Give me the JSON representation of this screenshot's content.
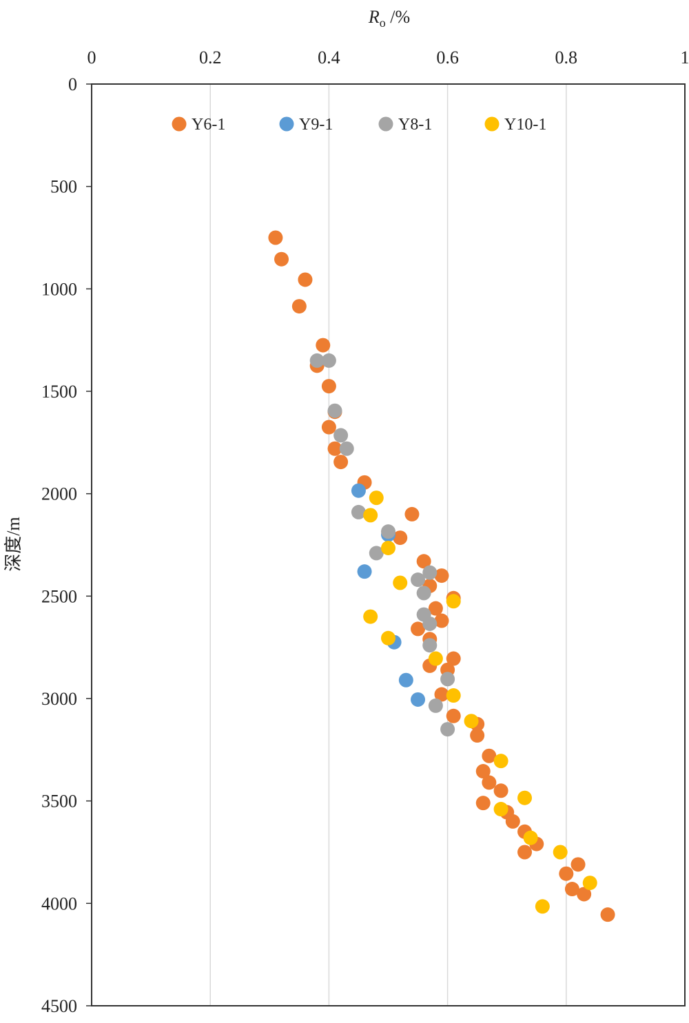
{
  "chart_data": {
    "type": "scatter",
    "xlabel_main": "R",
    "xlabel_sub": "o",
    "xlabel_unit": " /%",
    "ylabel": "深度/m",
    "x_axis_position": "top",
    "y_axis_inverted": true,
    "xlim": [
      0,
      1
    ],
    "ylim": [
      0,
      4500
    ],
    "x_ticks": [
      0,
      0.2,
      0.4,
      0.6,
      0.8,
      1
    ],
    "x_tick_labels": [
      "0",
      "0.2",
      "0.4",
      "0.6",
      "0.8",
      "1"
    ],
    "y_ticks": [
      0,
      500,
      1000,
      1500,
      2000,
      2500,
      3000,
      3500,
      4000,
      4500
    ],
    "y_tick_labels": [
      "0",
      "500",
      "1000",
      "1500",
      "2000",
      "2500",
      "3000",
      "3500",
      "4000",
      "4500"
    ],
    "grid": "vertical",
    "legend_position": "top",
    "series": [
      {
        "name": "Y6-1",
        "color": "#ED7D31",
        "points": [
          [
            0.31,
            750
          ],
          [
            0.32,
            855
          ],
          [
            0.36,
            955
          ],
          [
            0.35,
            1085
          ],
          [
            0.39,
            1275
          ],
          [
            0.38,
            1375
          ],
          [
            0.4,
            1475
          ],
          [
            0.41,
            1600
          ],
          [
            0.4,
            1675
          ],
          [
            0.41,
            1780
          ],
          [
            0.42,
            1845
          ],
          [
            0.46,
            1945
          ],
          [
            0.54,
            2100
          ],
          [
            0.52,
            2215
          ],
          [
            0.56,
            2330
          ],
          [
            0.59,
            2400
          ],
          [
            0.57,
            2450
          ],
          [
            0.61,
            2510
          ],
          [
            0.58,
            2560
          ],
          [
            0.59,
            2620
          ],
          [
            0.55,
            2660
          ],
          [
            0.57,
            2710
          ],
          [
            0.61,
            2805
          ],
          [
            0.57,
            2840
          ],
          [
            0.6,
            2860
          ],
          [
            0.59,
            2980
          ],
          [
            0.61,
            3085
          ],
          [
            0.65,
            3125
          ],
          [
            0.65,
            3180
          ],
          [
            0.67,
            3280
          ],
          [
            0.66,
            3355
          ],
          [
            0.67,
            3410
          ],
          [
            0.69,
            3450
          ],
          [
            0.66,
            3510
          ],
          [
            0.7,
            3555
          ],
          [
            0.71,
            3600
          ],
          [
            0.73,
            3650
          ],
          [
            0.75,
            3710
          ],
          [
            0.73,
            3750
          ],
          [
            0.82,
            3810
          ],
          [
            0.8,
            3855
          ],
          [
            0.81,
            3930
          ],
          [
            0.83,
            3955
          ],
          [
            0.87,
            4055
          ]
        ]
      },
      {
        "name": "Y9-1",
        "color": "#5B9BD5",
        "points": [
          [
            0.45,
            1985
          ],
          [
            0.5,
            2200
          ],
          [
            0.46,
            2380
          ],
          [
            0.51,
            2725
          ],
          [
            0.53,
            2910
          ],
          [
            0.55,
            3005
          ]
        ]
      },
      {
        "name": "Y8-1",
        "color": "#A5A5A5",
        "points": [
          [
            0.38,
            1350
          ],
          [
            0.4,
            1350
          ],
          [
            0.41,
            1595
          ],
          [
            0.42,
            1715
          ],
          [
            0.43,
            1780
          ],
          [
            0.45,
            2090
          ],
          [
            0.5,
            2185
          ],
          [
            0.48,
            2290
          ],
          [
            0.57,
            2385
          ],
          [
            0.55,
            2420
          ],
          [
            0.56,
            2485
          ],
          [
            0.56,
            2590
          ],
          [
            0.57,
            2635
          ],
          [
            0.57,
            2740
          ],
          [
            0.6,
            2905
          ],
          [
            0.58,
            3035
          ],
          [
            0.6,
            3150
          ]
        ]
      },
      {
        "name": "Y10-1",
        "color": "#FFC000",
        "points": [
          [
            0.48,
            2020
          ],
          [
            0.47,
            2105
          ],
          [
            0.5,
            2265
          ],
          [
            0.52,
            2435
          ],
          [
            0.61,
            2525
          ],
          [
            0.47,
            2600
          ],
          [
            0.5,
            2705
          ],
          [
            0.58,
            2805
          ],
          [
            0.61,
            2985
          ],
          [
            0.64,
            3110
          ],
          [
            0.69,
            3305
          ],
          [
            0.73,
            3485
          ],
          [
            0.69,
            3540
          ],
          [
            0.74,
            3680
          ],
          [
            0.79,
            3750
          ],
          [
            0.84,
            3900
          ],
          [
            0.76,
            4015
          ]
        ]
      }
    ]
  }
}
